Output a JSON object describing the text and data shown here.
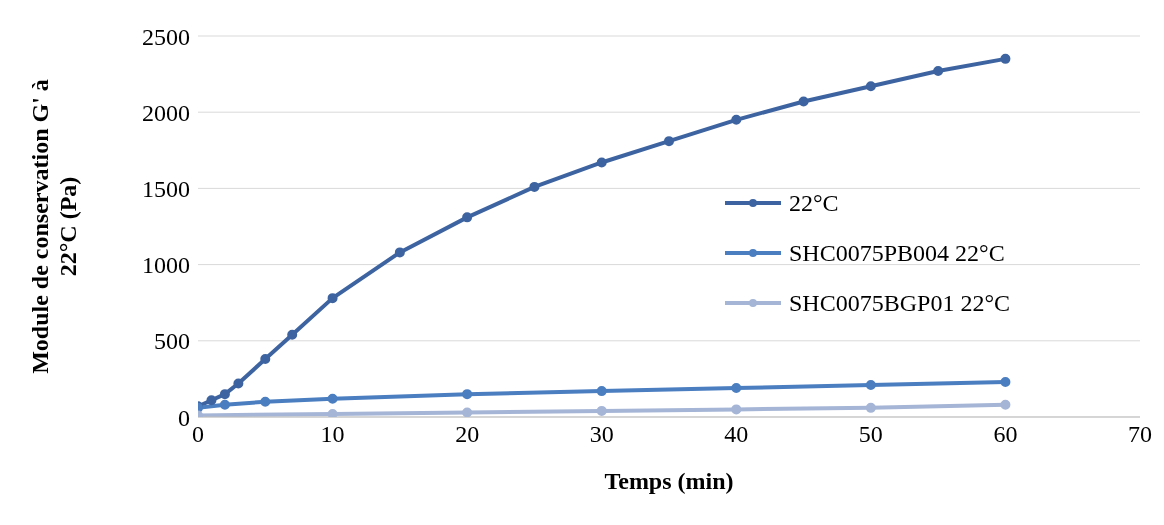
{
  "chart_data": {
    "type": "line",
    "xlabel": "Temps (min)",
    "ylabel": "Module  de conservation G' à 22°C (Pa)",
    "xlim": [
      0,
      70
    ],
    "xticks": [
      0,
      10,
      20,
      30,
      40,
      50,
      60,
      70
    ],
    "ylim": [
      0,
      2500
    ],
    "yticks": [
      0,
      500,
      1000,
      1500,
      2000,
      2500
    ],
    "grid": "y",
    "legend": "right",
    "marker": "circle",
    "line_style": "solid",
    "series": [
      {
        "name": "22°C",
        "color": "#3d64a0",
        "x": [
          0,
          1,
          2,
          3,
          5,
          7,
          10,
          15,
          20,
          25,
          30,
          35,
          40,
          45,
          50,
          55,
          60
        ],
        "values": [
          70,
          110,
          150,
          220,
          380,
          540,
          780,
          1080,
          1310,
          1510,
          1670,
          1810,
          1950,
          2070,
          2170,
          2270,
          2350
        ]
      },
      {
        "name": "SHC0075PB004 22°C",
        "color": "#4a7ec0",
        "x": [
          0,
          2,
          5,
          10,
          20,
          30,
          40,
          50,
          60
        ],
        "values": [
          60,
          80,
          100,
          120,
          150,
          170,
          190,
          210,
          230
        ]
      },
      {
        "name": "SHC0075BGP01 22°C",
        "color": "#a5b5d6",
        "x": [
          0,
          10,
          20,
          30,
          40,
          50,
          60
        ],
        "values": [
          10,
          20,
          30,
          40,
          50,
          60,
          80
        ]
      }
    ]
  }
}
